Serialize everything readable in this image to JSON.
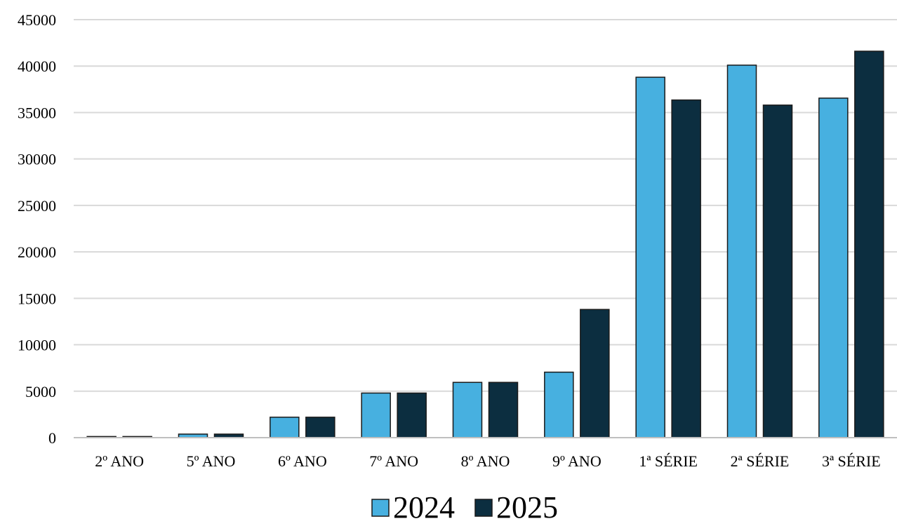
{
  "chart_data": {
    "type": "bar",
    "title": "",
    "xlabel": "",
    "ylabel": "",
    "categories": [
      "2º ANO",
      "5º ANO",
      "6º ANO",
      "7º ANO",
      "8º ANO",
      "9º ANO",
      "1ª SÉRIE",
      "2ª SÉRIE",
      "3ª SÉRIE"
    ],
    "series": [
      {
        "name": "2024",
        "color": "#47B0E0",
        "values": [
          120,
          380,
          2200,
          4800,
          5950,
          7050,
          38800,
          40100,
          36550
        ]
      },
      {
        "name": "2025",
        "color": "#0C2E40",
        "values": [
          120,
          380,
          2200,
          4800,
          5950,
          13800,
          36350,
          35800,
          41600
        ]
      }
    ],
    "ylim": [
      0,
      45000
    ],
    "yticks": [
      "0",
      "5000",
      "10000",
      "15000",
      "20000",
      "25000",
      "30000",
      "35000",
      "40000",
      "45000"
    ],
    "grid": true,
    "legend_position": "bottom"
  }
}
